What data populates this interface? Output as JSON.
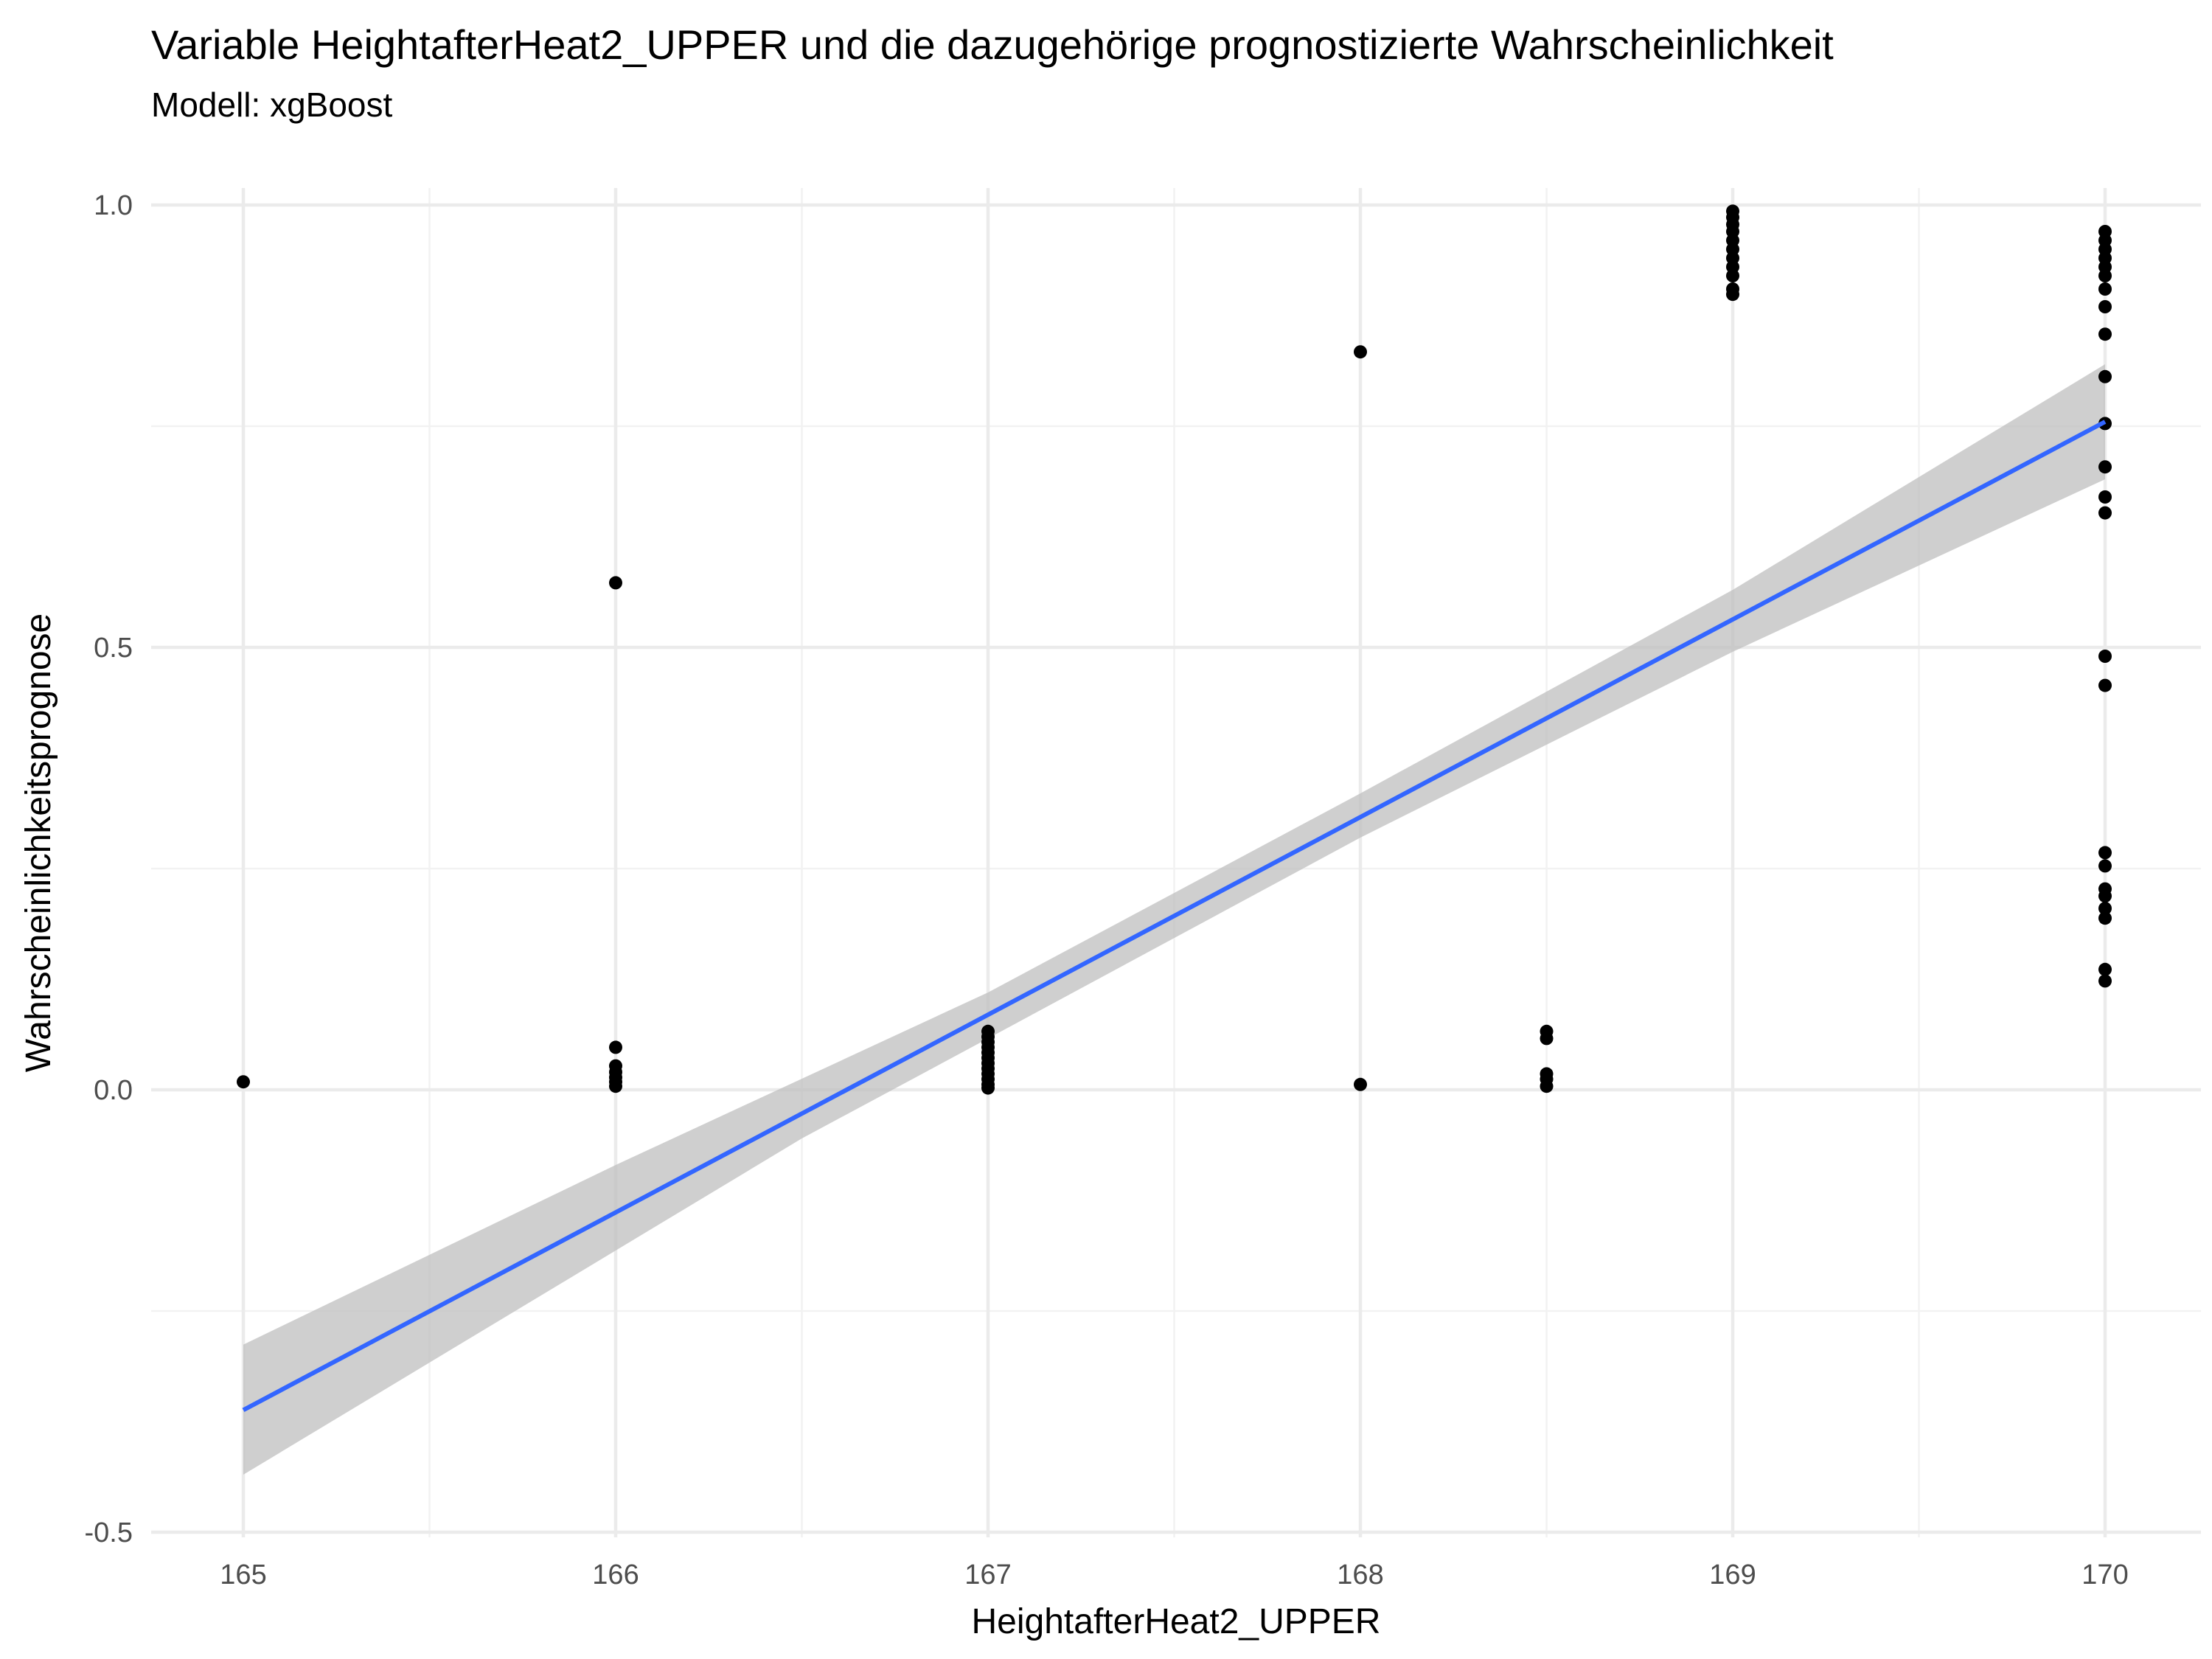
{
  "chart_data": {
    "type": "scatter",
    "title": "Variable HeightafterHeat2_UPPER und die dazugehörige prognostizierte Wahrscheinlichkeit",
    "subtitle": "Modell: xgBoost",
    "xlabel": "HeightafterHeat2_UPPER",
    "ylabel": "Wahrscheinlichkeitsprognose",
    "xlim": [
      164.75,
      170.25
    ],
    "ylim": [
      -0.5,
      1.04
    ],
    "x_ticks": [
      165,
      166,
      167,
      168,
      169,
      170
    ],
    "x_tick_labels": [
      "165",
      "166",
      "167",
      "168",
      "169",
      "170"
    ],
    "y_ticks": [
      -0.5,
      0.0,
      0.5,
      1.0
    ],
    "y_tick_labels": [
      "-0.5",
      "0.0",
      "0.5",
      "1.0"
    ],
    "grid": true,
    "colors": {
      "points": "#000000",
      "line": "#3366ff",
      "ribbon": "#bfbfbf",
      "grid": "#ebebeb"
    },
    "points": [
      [
        165,
        0.009
      ],
      [
        166,
        0.573
      ],
      [
        166,
        0.048
      ],
      [
        166,
        0.027
      ],
      [
        166,
        0.02
      ],
      [
        166,
        0.014
      ],
      [
        166,
        0.009
      ],
      [
        166,
        0.004
      ],
      [
        167,
        0.066
      ],
      [
        167,
        0.06
      ],
      [
        167,
        0.054
      ],
      [
        167,
        0.048
      ],
      [
        167,
        0.042
      ],
      [
        167,
        0.036
      ],
      [
        167,
        0.03
      ],
      [
        167,
        0.024
      ],
      [
        167,
        0.018
      ],
      [
        167,
        0.012
      ],
      [
        167,
        0.006
      ],
      [
        167,
        0.002
      ],
      [
        168,
        0.834
      ],
      [
        168,
        0.006
      ],
      [
        168.5,
        0.066
      ],
      [
        168.5,
        0.058
      ],
      [
        168.5,
        0.018
      ],
      [
        168.5,
        0.012
      ],
      [
        168.5,
        0.004
      ],
      [
        169,
        0.993
      ],
      [
        169,
        0.986
      ],
      [
        169,
        0.978
      ],
      [
        169,
        0.97
      ],
      [
        169,
        0.96
      ],
      [
        169,
        0.95
      ],
      [
        169,
        0.94
      ],
      [
        169,
        0.93
      ],
      [
        169,
        0.92
      ],
      [
        169,
        0.905
      ],
      [
        169,
        0.899
      ],
      [
        170,
        0.97
      ],
      [
        170,
        0.96
      ],
      [
        170,
        0.95
      ],
      [
        170,
        0.94
      ],
      [
        170,
        0.93
      ],
      [
        170,
        0.92
      ],
      [
        170,
        0.905
      ],
      [
        170,
        0.885
      ],
      [
        170,
        0.854
      ],
      [
        170,
        0.806
      ],
      [
        170,
        0.753
      ],
      [
        170,
        0.704
      ],
      [
        170,
        0.67
      ],
      [
        170,
        0.652
      ],
      [
        170,
        0.49
      ],
      [
        170,
        0.457
      ],
      [
        170,
        0.268
      ],
      [
        170,
        0.253
      ],
      [
        170,
        0.227
      ],
      [
        170,
        0.219
      ],
      [
        170,
        0.205
      ],
      [
        170,
        0.194
      ],
      [
        170,
        0.136
      ],
      [
        170,
        0.123
      ]
    ],
    "regression": {
      "type": "linear",
      "line": [
        [
          165,
          -0.362
        ],
        [
          170,
          0.755
        ]
      ],
      "ci_lower": [
        [
          165,
          -0.435
        ],
        [
          166.5,
          -0.055
        ],
        [
          167,
          0.058
        ],
        [
          168,
          0.285
        ],
        [
          169,
          0.495
        ],
        [
          170,
          0.69
        ]
      ],
      "ci_upper": [
        [
          165,
          -0.288
        ],
        [
          166,
          -0.085
        ],
        [
          167,
          0.11
        ],
        [
          168,
          0.335
        ],
        [
          169,
          0.565
        ],
        [
          170,
          0.82
        ]
      ]
    }
  }
}
